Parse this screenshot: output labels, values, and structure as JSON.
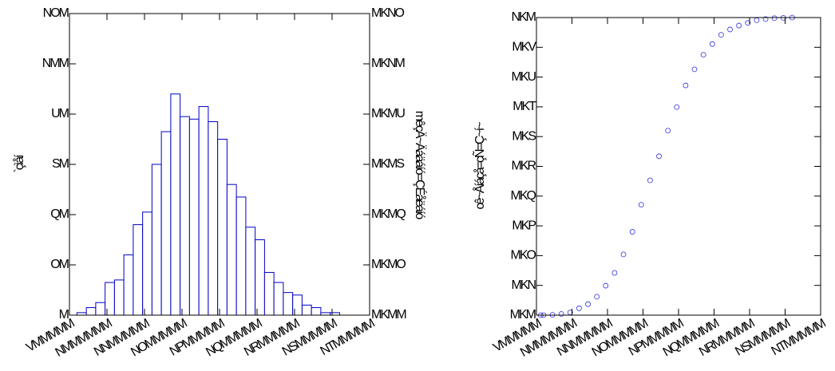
{
  "chart_data": [
    {
      "type": "histogram",
      "ylabel": "`çìåí",
      "y2label": "mêçÄ~Äáäáíó=ÇÉåëáíó",
      "bins": [
        920000,
        945000,
        970000,
        995000,
        1020000,
        1045000,
        1070000,
        1095000,
        1120000,
        1145000,
        1170000,
        1195000,
        1220000,
        1245000,
        1270000,
        1295000,
        1320000,
        1345000,
        1370000,
        1395000,
        1420000,
        1445000,
        1470000,
        1495000,
        1520000,
        1545000,
        1570000,
        1595000,
        1620000
      ],
      "values": [
        1,
        3,
        5,
        13,
        14,
        24,
        36,
        41,
        60,
        73,
        88,
        79,
        78,
        83,
        77,
        70,
        52,
        47,
        35,
        30,
        17,
        13,
        9,
        8,
        4,
        3,
        1,
        1
      ],
      "color": "#0000c8",
      "xlim": [
        900000,
        1700000
      ],
      "xticks": [
        {
          "value": 900000,
          "label": "VMMMMM"
        },
        {
          "value": 1000000,
          "label": "NMMMMMM"
        },
        {
          "value": 1100000,
          "label": "NNMMMMM"
        },
        {
          "value": 1200000,
          "label": "NOMMMMM"
        },
        {
          "value": 1300000,
          "label": "NPMMMMM"
        },
        {
          "value": 1400000,
          "label": "NQMMMMM"
        },
        {
          "value": 1500000,
          "label": "NRMMMMM"
        },
        {
          "value": 1600000,
          "label": "NSMMMMM"
        },
        {
          "value": 1700000,
          "label": "NTMMMMM"
        }
      ],
      "ylim": [
        0,
        120
      ],
      "yticks": [
        {
          "value": 0,
          "label": "M"
        },
        {
          "value": 20,
          "label": "OM"
        },
        {
          "value": 40,
          "label": "QM"
        },
        {
          "value": 60,
          "label": "SM"
        },
        {
          "value": 80,
          "label": "UM"
        },
        {
          "value": 100,
          "label": "NMM"
        },
        {
          "value": 120,
          "label": "NOM"
        }
      ],
      "y2lim": [
        0,
        0.12
      ],
      "y2ticks": [
        {
          "value": 0,
          "label": "MKMM"
        },
        {
          "value": 0.02,
          "label": "MKMO"
        },
        {
          "value": 0.04,
          "label": "MKMQ"
        },
        {
          "value": 0.06,
          "label": "MKMS"
        },
        {
          "value": 0.08,
          "label": "MKMU"
        },
        {
          "value": 0.1,
          "label": "MKNM"
        },
        {
          "value": 0.12,
          "label": "MKNO"
        }
      ]
    },
    {
      "type": "scatter",
      "ylabel": "cê~Åíáçå=çÑ=Ç~í~",
      "x": [
        912000,
        920000,
        945000,
        970000,
        995000,
        1020000,
        1045000,
        1070000,
        1095000,
        1120000,
        1145000,
        1170000,
        1195000,
        1220000,
        1245000,
        1270000,
        1295000,
        1320000,
        1345000,
        1370000,
        1395000,
        1420000,
        1445000,
        1470000,
        1495000,
        1520000,
        1545000,
        1570000,
        1595000,
        1620000
      ],
      "series": [
        {
          "color": "#3030e0",
          "values": [
            0.0,
            0.0,
            0.001,
            0.004,
            0.009,
            0.023,
            0.037,
            0.062,
            0.099,
            0.142,
            0.204,
            0.28,
            0.371,
            0.453,
            0.534,
            0.62,
            0.699,
            0.772,
            0.826,
            0.875,
            0.911,
            0.942,
            0.96,
            0.973,
            0.982,
            0.991,
            0.995,
            0.998,
            0.999,
            1.0
          ]
        }
      ],
      "xlim": [
        900000,
        1700000
      ],
      "xticks": [
        {
          "value": 900000,
          "label": "VMMMMM"
        },
        {
          "value": 1000000,
          "label": "NMMMMMM"
        },
        {
          "value": 1100000,
          "label": "NNMMMMM"
        },
        {
          "value": 1200000,
          "label": "NOMMMMM"
        },
        {
          "value": 1300000,
          "label": "NPMMMMM"
        },
        {
          "value": 1400000,
          "label": "NQMMMMM"
        },
        {
          "value": 1500000,
          "label": "NRMMMMM"
        },
        {
          "value": 1600000,
          "label": "NSMMMMM"
        },
        {
          "value": 1700000,
          "label": "NTMMMMM"
        }
      ],
      "ylim": [
        0,
        1
      ],
      "yticks": [
        {
          "value": 0,
          "label": "MKM"
        },
        {
          "value": 0.1,
          "label": "MKN"
        },
        {
          "value": 0.2,
          "label": "MKO"
        },
        {
          "value": 0.3,
          "label": "MKP"
        },
        {
          "value": 0.4,
          "label": "MKQ"
        },
        {
          "value": 0.5,
          "label": "MKR"
        },
        {
          "value": 0.6,
          "label": "MKS"
        },
        {
          "value": 0.7,
          "label": "MKT"
        },
        {
          "value": 0.8,
          "label": "MKU"
        },
        {
          "value": 0.9,
          "label": "MKV"
        },
        {
          "value": 1,
          "label": "NKM"
        }
      ]
    }
  ]
}
